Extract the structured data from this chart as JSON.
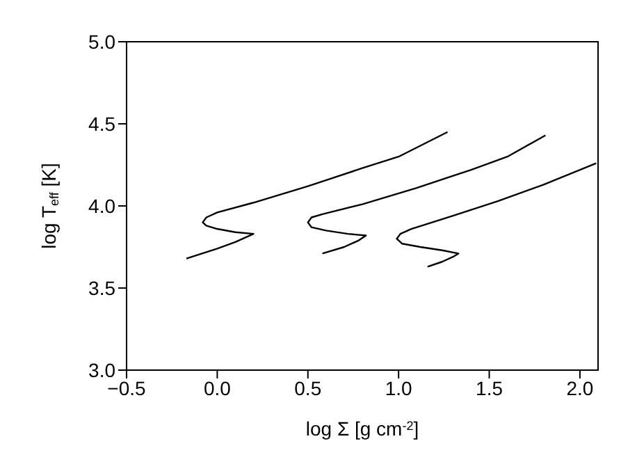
{
  "chart_data": {
    "type": "line",
    "xlabel": "log Σ [g cm$^{-2}$]",
    "ylabel": "log T$_{eff}$ [K]",
    "xlim": [
      -0.5,
      2.1
    ],
    "xticks": [
      {
        "value": -0.5,
        "label": "−0.5"
      },
      {
        "value": 0,
        "label": "0.0"
      },
      0.5,
      {
        "value": 1,
        "label": "1.0"
      },
      1.5,
      {
        "value": 2,
        "label": "2.0"
      }
    ],
    "ylim": [
      3,
      5
    ],
    "yticks": [
      {
        "value": 3,
        "label": "3.0"
      },
      3.5,
      {
        "value": 4,
        "label": "4.0"
      },
      4.5,
      {
        "value": 5,
        "label": "5.0"
      }
    ],
    "marker": "none",
    "line_style": "solid",
    "series": [
      {
        "color": "#000000",
        "x": [
          -0.17,
          0.0,
          0.1,
          0.2,
          0.1,
          0.0,
          -0.06,
          -0.08,
          -0.06,
          0.0,
          0.2,
          0.5,
          0.8,
          1.0,
          1.27
        ],
        "values": [
          3.68,
          3.74,
          3.78,
          3.83,
          3.84,
          3.86,
          3.88,
          3.9,
          3.93,
          3.96,
          4.02,
          4.12,
          4.23,
          4.3,
          4.45
        ]
      },
      {
        "color": "#000000",
        "x": [
          0.58,
          0.7,
          0.78,
          0.82,
          0.72,
          0.6,
          0.52,
          0.5,
          0.52,
          0.58,
          0.8,
          1.1,
          1.4,
          1.6,
          1.81
        ],
        "values": [
          3.71,
          3.75,
          3.79,
          3.82,
          3.83,
          3.85,
          3.87,
          3.9,
          3.93,
          3.95,
          4.01,
          4.11,
          4.22,
          4.3,
          4.43
        ]
      },
      {
        "color": "#000000",
        "x": [
          1.16,
          1.24,
          1.3,
          1.33,
          1.24,
          1.12,
          1.02,
          0.99,
          1.01,
          1.07,
          1.3,
          1.55,
          1.8,
          2.09
        ],
        "values": [
          3.63,
          3.66,
          3.69,
          3.71,
          3.73,
          3.75,
          3.77,
          3.8,
          3.83,
          3.86,
          3.94,
          4.03,
          4.13,
          4.26
        ]
      }
    ]
  }
}
